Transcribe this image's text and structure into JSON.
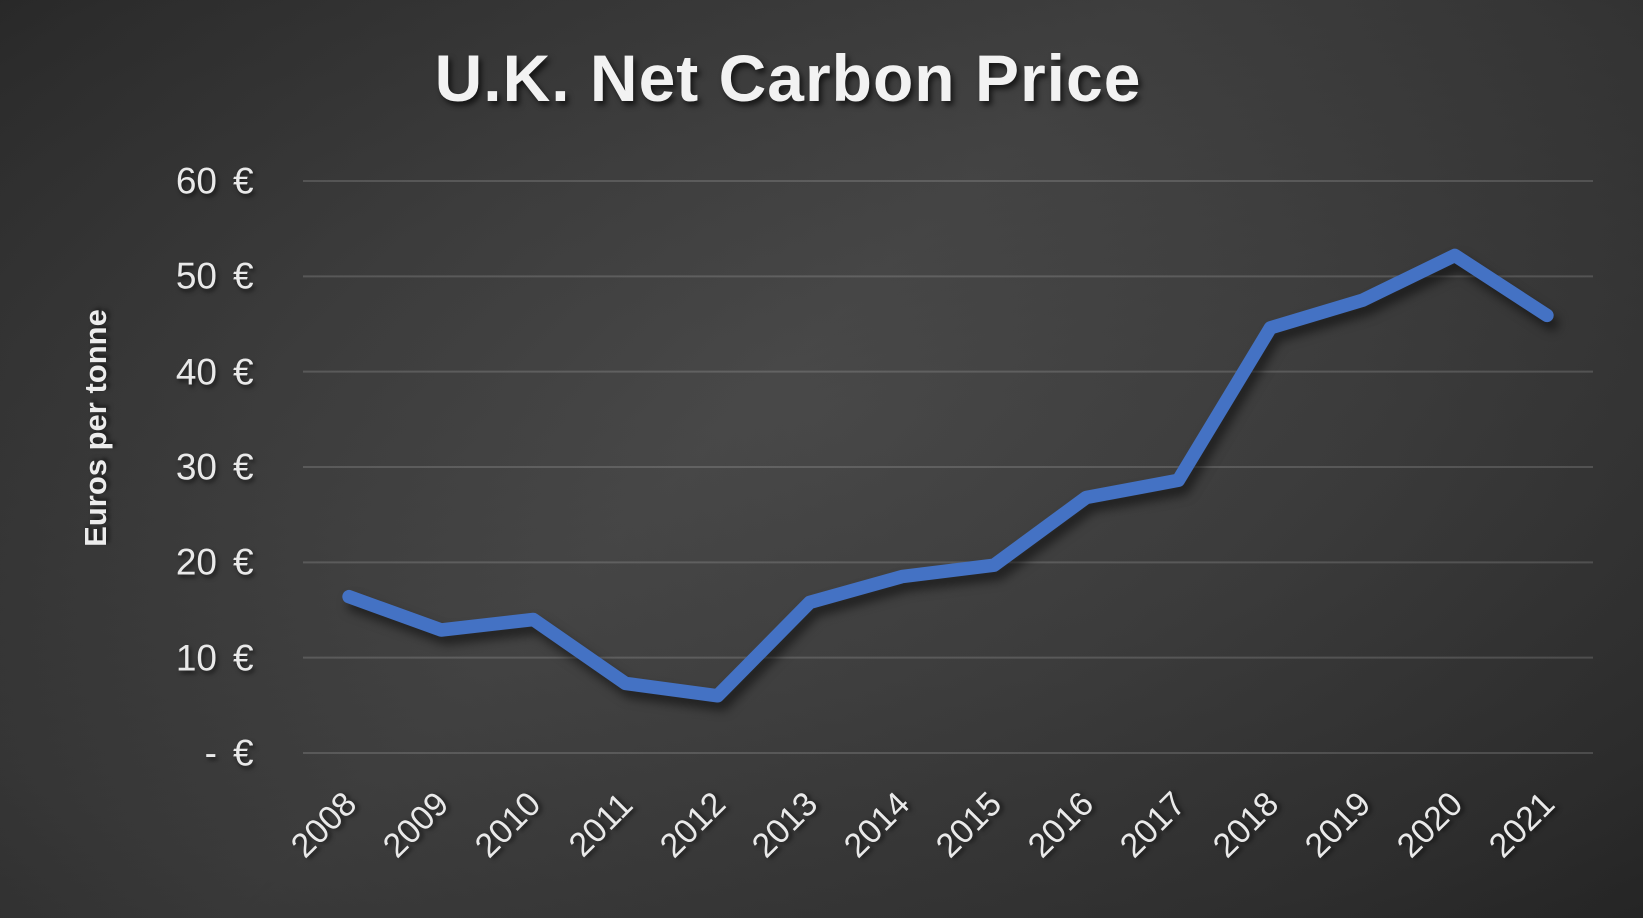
{
  "chart_data": {
    "type": "line",
    "title": "U.K. Net Carbon Price",
    "ylabel": "Euros per tonne",
    "xlabel": "",
    "categories": [
      "2008",
      "2009",
      "2010",
      "2011",
      "2012",
      "2013",
      "2014",
      "2015",
      "2016",
      "2017",
      "2018",
      "2019",
      "2020",
      "2021"
    ],
    "series": [
      {
        "name": "U.K. Net Carbon Price",
        "values": [
          16.4,
          12.9,
          14.0,
          7.3,
          6.0,
          15.8,
          18.5,
          19.7,
          26.8,
          28.6,
          44.6,
          47.5,
          52.2,
          45.9
        ],
        "color": "#4472C4"
      }
    ],
    "ylim": [
      0,
      60
    ],
    "ytick_interval": 10,
    "yticks": [
      {
        "value": 0,
        "num": "-",
        "sym": "€",
        "label": "- €"
      },
      {
        "value": 10,
        "num": "10",
        "sym": "€",
        "label": "10 €"
      },
      {
        "value": 20,
        "num": "20",
        "sym": "€",
        "label": "20 €"
      },
      {
        "value": 30,
        "num": "30",
        "sym": "€",
        "label": "30 €"
      },
      {
        "value": 40,
        "num": "40",
        "sym": "€",
        "label": "40 €"
      },
      {
        "value": 50,
        "num": "50",
        "sym": "€",
        "label": "50 €"
      },
      {
        "value": 60,
        "num": "60",
        "sym": "€",
        "label": "60 €"
      }
    ],
    "grid": "horizontal",
    "legend": "none"
  },
  "colors": {
    "line": "#4472C4",
    "gridline": "rgba(255,255,255,0.15)",
    "tick_text": "#e9e9e9",
    "title_text": "#f2f2f2",
    "background_center": "#434343",
    "background_edge": "#1c1c1c"
  }
}
